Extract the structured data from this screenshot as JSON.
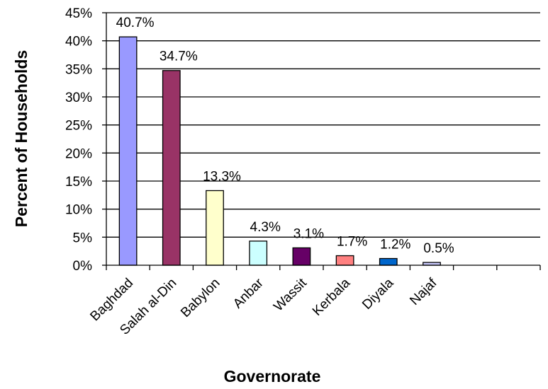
{
  "chart_data": {
    "type": "bar",
    "title": "",
    "xlabel": "Governorate",
    "ylabel": "Percent of Households",
    "ylim": [
      0,
      45
    ],
    "yticks": [
      "0%",
      "5%",
      "10%",
      "15%",
      "20%",
      "25%",
      "30%",
      "35%",
      "40%",
      "45%"
    ],
    "categories": [
      "Baghdad",
      "Salah al-Din",
      "Babylon",
      "Anbar",
      "Wassit",
      "Kerbala",
      "Diyala",
      "Najaf"
    ],
    "values": [
      40.7,
      34.7,
      13.3,
      4.3,
      3.1,
      1.7,
      1.2,
      0.5
    ],
    "data_labels": [
      "40.7%",
      "34.7%",
      "13.3%",
      "4.3%",
      "3.1%",
      "1.7%",
      "1.2%",
      "0.5%"
    ],
    "empty_slots": 2,
    "colors": [
      "#9999ff",
      "#993366",
      "#ffffcc",
      "#ccffff",
      "#660066",
      "#ff8080",
      "#0066cc",
      "#ccccff"
    ],
    "grid": true,
    "legend": "none"
  }
}
